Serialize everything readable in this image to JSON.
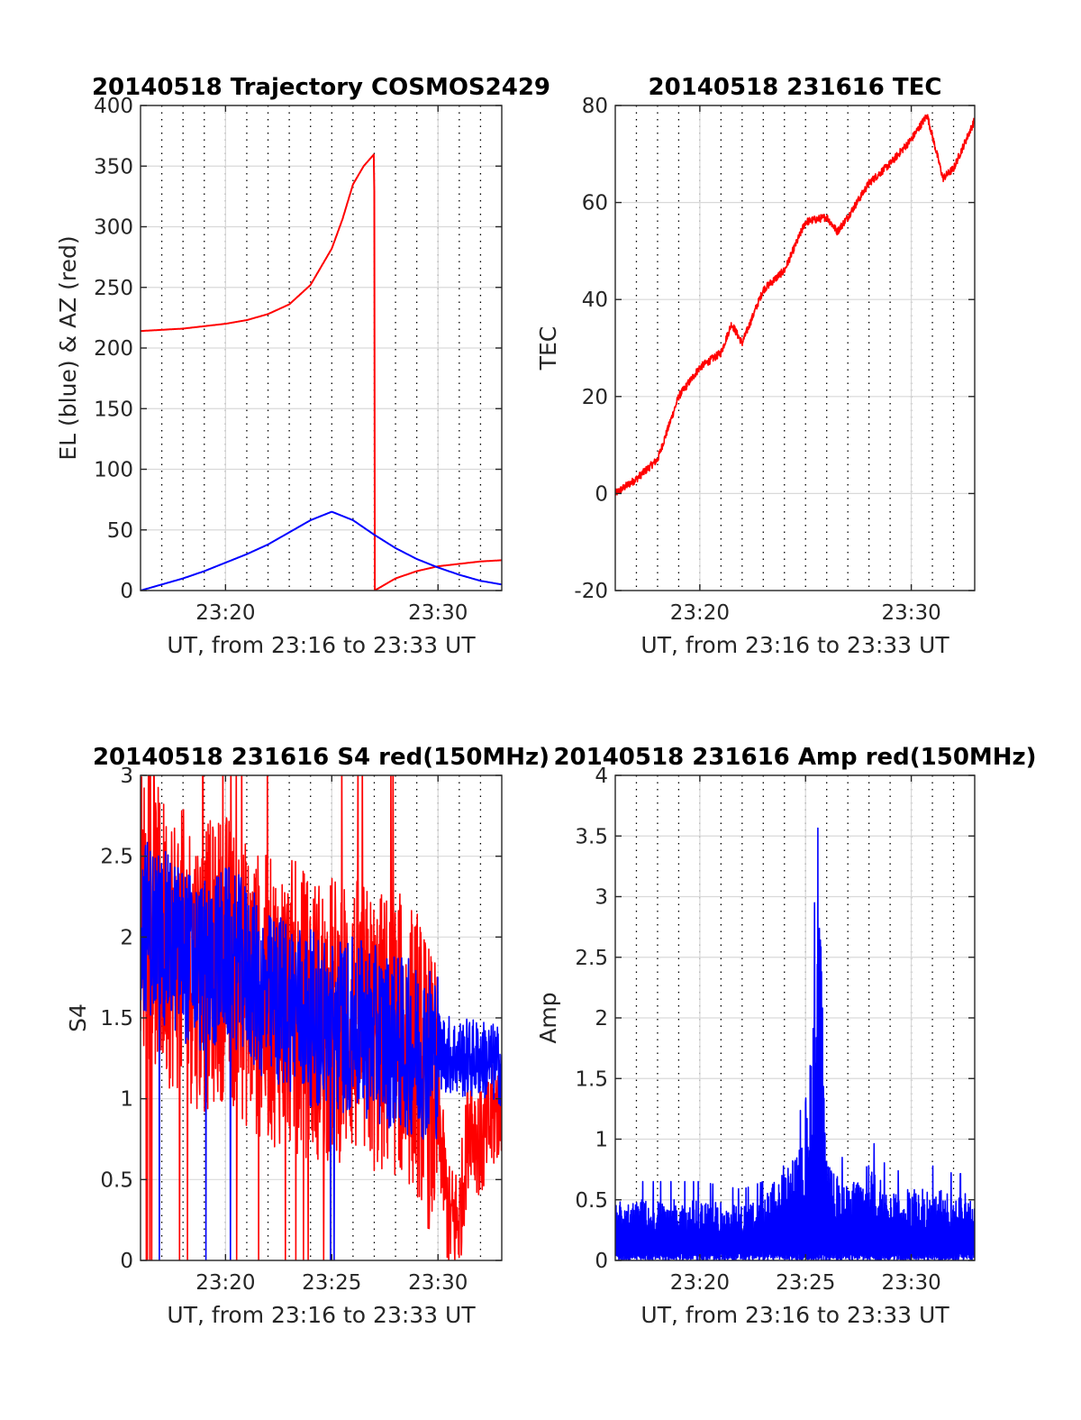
{
  "figure": {
    "background": "#ffffff",
    "colors": {
      "red": "#ff0000",
      "blue": "#0000ff",
      "grid": "#d9d9d9",
      "axis": "#262626"
    }
  },
  "chart_data": [
    {
      "id": "trajectory",
      "type": "line",
      "title": "20140518 Trajectory COSMOS2429",
      "xlabel": "UT, from 23:16 to 23:33 UT",
      "ylabel": "EL (blue) & AZ (red)",
      "xlim": [
        "23:16",
        "23:33"
      ],
      "ylim": [
        0,
        400
      ],
      "xticks": [
        "23:20",
        "23:30"
      ],
      "yticks": [
        0,
        50,
        100,
        150,
        200,
        250,
        300,
        350,
        400
      ],
      "grid": "on",
      "minor_x_grid": "dotted, every 1 min",
      "series": [
        {
          "color": "#ff0000",
          "x": [
            "23:16",
            "23:17",
            "23:18",
            "23:19",
            "23:20",
            "23:21",
            "23:22",
            "23:23",
            "23:24",
            "23:25",
            "23:25:30",
            "23:26",
            "23:26:30",
            "23:27",
            "23:27:01",
            "23:28",
            "23:29",
            "23:30",
            "23:31",
            "23:32",
            "23:33"
          ],
          "values": [
            214,
            215,
            216,
            218,
            220,
            223,
            228,
            236,
            252,
            282,
            306,
            335,
            350,
            360,
            0,
            10,
            16,
            20,
            22,
            24,
            25
          ]
        },
        {
          "color": "#0000ff",
          "x": [
            "23:16",
            "23:17",
            "23:18",
            "23:19",
            "23:20",
            "23:21",
            "23:22",
            "23:23",
            "23:24",
            "23:25",
            "23:26",
            "23:27",
            "23:28",
            "23:29",
            "23:30",
            "23:31",
            "23:32",
            "23:33"
          ],
          "values": [
            0,
            5,
            10,
            16,
            23,
            30,
            38,
            48,
            58,
            65,
            58,
            46,
            35,
            26,
            19,
            13,
            8,
            5
          ]
        }
      ]
    },
    {
      "id": "tec",
      "type": "line",
      "title": "20140518 231616 TEC",
      "xlabel": "UT, from 23:16 to 23:33 UT",
      "ylabel": "TEC",
      "xlim": [
        "23:16",
        "23:33"
      ],
      "ylim": [
        -20,
        80
      ],
      "xticks": [
        "23:20",
        "23:30"
      ],
      "yticks": [
        -20,
        0,
        20,
        40,
        60,
        80
      ],
      "grid": "on",
      "series": [
        {
          "color": "#ff0000",
          "x": [
            "23:16",
            "23:17",
            "23:18",
            "23:19",
            "23:20",
            "23:21",
            "23:21:30",
            "23:22",
            "23:23",
            "23:24",
            "23:25",
            "23:26",
            "23:26:30",
            "23:27",
            "23:28",
            "23:29",
            "23:30",
            "23:30:45",
            "23:31:30",
            "23:32",
            "23:33"
          ],
          "values": [
            0,
            3,
            7,
            20,
            26,
            29,
            35,
            31,
            42,
            46,
            56,
            57,
            54,
            57,
            64,
            68,
            73,
            78,
            65,
            67,
            77
          ]
        }
      ]
    },
    {
      "id": "s4",
      "type": "line",
      "title": "20140518 231616 S4 red(150MHz)",
      "xlabel": "UT, from 23:16 to 23:33 UT",
      "ylabel": "S4",
      "xlim": [
        "23:16",
        "23:33"
      ],
      "ylim": [
        0,
        3
      ],
      "xticks": [
        "23:20",
        "23:25",
        "23:30"
      ],
      "yticks": [
        0,
        0.5,
        1,
        1.5,
        2,
        2.5,
        3
      ],
      "grid": "on",
      "series": [
        {
          "color": "#ff0000",
          "x": [
            "23:16",
            "23:17",
            "23:18",
            "23:19",
            "23:20",
            "23:21",
            "23:22",
            "23:23",
            "23:24",
            "23:25",
            "23:26",
            "23:27",
            "23:28",
            "23:29",
            "23:30",
            "23:30:30",
            "23:31",
            "23:31:30",
            "23:32",
            "23:33"
          ],
          "values": [
            2.2,
            2.0,
            1.9,
            1.8,
            1.9,
            1.7,
            1.6,
            1.6,
            1.5,
            1.5,
            1.5,
            1.4,
            1.4,
            1.3,
            0.9,
            0.25,
            0.25,
            0.9,
            0.7,
            1.0
          ]
        },
        {
          "color": "#0000ff",
          "x": [
            "23:16",
            "23:17",
            "23:18",
            "23:19",
            "23:20",
            "23:21",
            "23:22",
            "23:23",
            "23:24",
            "23:25",
            "23:26",
            "23:27",
            "23:28",
            "23:29",
            "23:30",
            "23:31",
            "23:32",
            "23:33"
          ],
          "values": [
            2.1,
            2.0,
            1.9,
            1.8,
            1.9,
            1.8,
            1.6,
            1.6,
            1.5,
            1.45,
            1.45,
            1.4,
            1.35,
            1.3,
            1.3,
            1.25,
            1.25,
            1.2
          ]
        }
      ]
    },
    {
      "id": "amp",
      "type": "line",
      "title": "20140518 231616 Amp red(150MHz)",
      "xlabel": "UT, from 23:16 to 23:33 UT",
      "ylabel": "Amp",
      "xlim": [
        "23:16",
        "23:33"
      ],
      "ylim": [
        0,
        4
      ],
      "xticks": [
        "23:20",
        "23:25",
        "23:30"
      ],
      "yticks": [
        0,
        0.5,
        1,
        1.5,
        2,
        2.5,
        3,
        3.5,
        4
      ],
      "grid": "on",
      "series": [
        {
          "color": "#0000ff",
          "x": [
            "23:16",
            "23:18",
            "23:20",
            "23:22",
            "23:23",
            "23:24",
            "23:25",
            "23:25:40",
            "23:26",
            "23:27",
            "23:28",
            "23:29",
            "23:30",
            "23:31",
            "23:32",
            "23:33"
          ],
          "values": [
            0.5,
            0.5,
            0.5,
            0.45,
            0.5,
            0.8,
            1.0,
            3.0,
            0.8,
            0.6,
            0.8,
            0.55,
            0.6,
            0.6,
            0.55,
            0.55
          ]
        }
      ]
    }
  ]
}
